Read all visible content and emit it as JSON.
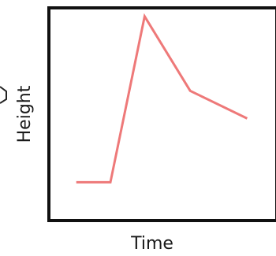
{
  "chart_data": {
    "type": "line",
    "title": "",
    "xlabel": "Time",
    "ylabel": "Height",
    "xlim": [
      0,
      10
    ],
    "ylim": [
      0,
      10
    ],
    "grid": false,
    "legend": "none",
    "series": [
      {
        "x": [
          1.2,
          2.7,
          4.2,
          6.2,
          8.7
        ],
        "y": [
          1.8,
          1.8,
          9.6,
          6.1,
          4.8
        ]
      }
    ],
    "colors": {
      "line": "#ee7979",
      "frame": "#111111"
    }
  }
}
